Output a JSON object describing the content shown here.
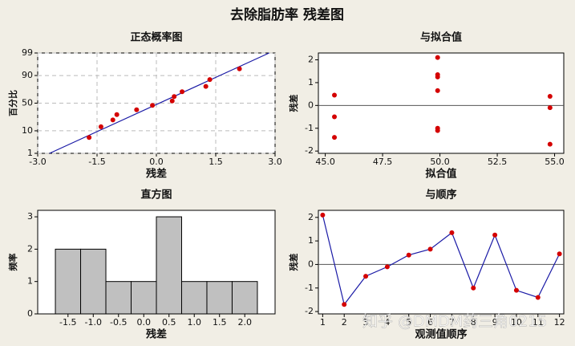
{
  "title": "去除脂肪率 残差图",
  "watermark": "知乎 @DMDM药三角0215",
  "chart_data": [
    {
      "type": "probability",
      "title": "正态概率图",
      "xlabel": "残差",
      "ylabel": "百分比",
      "x": [
        -1.7,
        -1.4,
        -1.1,
        -1.0,
        -0.5,
        -0.1,
        0.4,
        0.45,
        0.65,
        1.25,
        1.35,
        2.1
      ],
      "values": [
        5.6,
        13.7,
        21.8,
        29.8,
        37.9,
        46.0,
        54.0,
        62.1,
        70.2,
        78.2,
        86.3,
        94.4
      ],
      "fit_line": {
        "x": [
          -2.7,
          2.85
        ],
        "y": [
          1,
          99
        ]
      },
      "xlim": [
        -3.0,
        3.0
      ],
      "xticks": [
        {
          "value": -3,
          "label": "-3.0"
        },
        {
          "value": -1.5,
          "label": "-1.5"
        },
        {
          "value": 0,
          "label": "0.0"
        },
        {
          "value": 1.5,
          "label": "1.5"
        },
        {
          "value": 3,
          "label": "3.0"
        }
      ],
      "ylim": [
        1,
        99
      ],
      "yticks": [
        1,
        10,
        50,
        90,
        99
      ],
      "yscale": "probit",
      "grid": true,
      "color": "#d40000",
      "line_color": "#1a1aa6"
    },
    {
      "type": "scatter",
      "title": "与拟合值",
      "xlabel": "拟合值",
      "ylabel": "残差",
      "x": [
        49.9,
        54.8,
        45.4,
        54.8,
        54.8,
        49.9,
        49.9,
        49.9,
        49.9,
        49.9,
        45.4,
        45.4
      ],
      "values": [
        2.1,
        -1.7,
        -0.5,
        -0.1,
        0.4,
        0.65,
        1.35,
        -1.0,
        1.25,
        -1.1,
        -1.4,
        0.45
      ],
      "xlim": [
        44.7,
        55.4
      ],
      "xticks": [
        {
          "value": 45,
          "label": "45.0"
        },
        {
          "value": 47.5,
          "label": "47.5"
        },
        {
          "value": 50,
          "label": "50.0"
        },
        {
          "value": 52.5,
          "label": "52.5"
        },
        {
          "value": 55,
          "label": "55.0"
        }
      ],
      "ylim": [
        -2.1,
        2.3
      ],
      "yticks": [
        -2,
        -1,
        0,
        1,
        2
      ],
      "reference_line": 0,
      "color": "#d40000"
    },
    {
      "type": "histogram",
      "title": "直方图",
      "xlabel": "残差",
      "ylabel": "频率",
      "bins": [
        -1.75,
        -1.25,
        -0.75,
        -0.25,
        0.25,
        0.75,
        1.25,
        1.75,
        2.25
      ],
      "values": [
        2,
        2,
        1,
        1,
        3,
        1,
        1,
        1
      ],
      "xlim": [
        -2.1,
        2.6
      ],
      "xticks": [
        {
          "value": -1.5,
          "label": "-1.5"
        },
        {
          "value": -1,
          "label": "-1.0"
        },
        {
          "value": -0.5,
          "label": "-0.5"
        },
        {
          "value": 0,
          "label": "0.0"
        },
        {
          "value": 0.5,
          "label": "0.5"
        },
        {
          "value": 1,
          "label": "1.0"
        },
        {
          "value": 1.5,
          "label": "1.5"
        },
        {
          "value": 2,
          "label": "2.0"
        }
      ],
      "ylim": [
        0,
        3.2
      ],
      "yticks": [
        0,
        1,
        2,
        3
      ],
      "color": "#c0c0c0"
    },
    {
      "type": "line",
      "title": "与顺序",
      "xlabel": "观测值顺序",
      "ylabel": "残差",
      "x": [
        1,
        2,
        3,
        4,
        5,
        6,
        7,
        8,
        9,
        10,
        11,
        12
      ],
      "values": [
        2.1,
        -1.7,
        -0.5,
        -0.1,
        0.4,
        0.65,
        1.35,
        -1.0,
        1.25,
        -1.1,
        -1.4,
        0.45
      ],
      "xlim": [
        0.8,
        12.2
      ],
      "xticks": [
        1,
        2,
        3,
        4,
        5,
        6,
        7,
        8,
        9,
        10,
        11,
        12
      ],
      "ylim": [
        -2.1,
        2.3
      ],
      "yticks": [
        -2,
        -1,
        0,
        1,
        2
      ],
      "reference_line": 0,
      "color": "#d40000",
      "line_color": "#1a1aa6"
    }
  ]
}
